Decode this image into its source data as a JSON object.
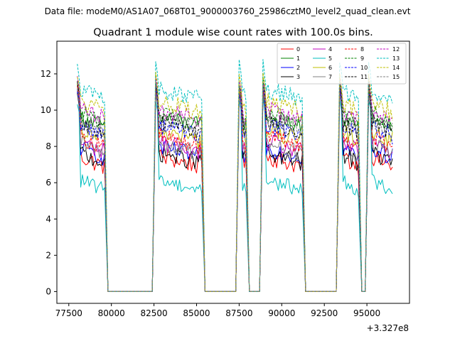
{
  "suptitle": "Data file: modeM0/AS1A07_068T01_9000003760_25986cztM0_level2_quad_clean.evt",
  "chart_data": {
    "type": "line",
    "title": "Quadrant 1 module wise count rates with 100.0s bins.",
    "xlabel": "",
    "ylabel": "",
    "x_offset_label": "+3.327e8",
    "xlim": [
      76800,
      97500
    ],
    "ylim": [
      -0.65,
      13.8
    ],
    "xticks": [
      77500,
      80000,
      82500,
      85000,
      87500,
      90000,
      92500,
      95000
    ],
    "yticks": [
      0,
      2,
      4,
      6,
      8,
      10,
      12
    ],
    "grid": false,
    "legend_position": "top-right",
    "legend_columns": 4,
    "segments": [
      {
        "start": 78000,
        "end": 79600
      },
      {
        "start": 82600,
        "end": 85300
      },
      {
        "start": 87500,
        "end": 87900
      },
      {
        "start": 88900,
        "end": 91200
      },
      {
        "start": 93400,
        "end": 94500
      },
      {
        "start": 95100,
        "end": 96500
      }
    ],
    "gap_points": [
      79800,
      80000,
      82400,
      85500,
      87300,
      88100,
      88300,
      88700,
      91400,
      93200,
      94700,
      94900
    ],
    "series": [
      {
        "name": "0",
        "color": "#ff0000",
        "dash": "solid",
        "level": 7.2,
        "amp": 0.5,
        "peak": 11.6
      },
      {
        "name": "1",
        "color": "#008000",
        "dash": "solid",
        "level": 9.4,
        "amp": 0.5,
        "peak": 11.8
      },
      {
        "name": "2",
        "color": "#0000ff",
        "dash": "solid",
        "level": 7.7,
        "amp": 0.5,
        "peak": 11.5
      },
      {
        "name": "3",
        "color": "#000000",
        "dash": "solid",
        "level": 7.4,
        "amp": 0.5,
        "peak": 11.4
      },
      {
        "name": "4",
        "color": "#bf00bf",
        "dash": "solid",
        "level": 8.0,
        "amp": 0.5,
        "peak": 11.6
      },
      {
        "name": "5",
        "color": "#00bfbf",
        "dash": "solid",
        "level": 5.9,
        "amp": 0.4,
        "peak": 11.0
      },
      {
        "name": "6",
        "color": "#bfbf00",
        "dash": "solid",
        "level": 8.6,
        "amp": 0.5,
        "peak": 11.7
      },
      {
        "name": "7",
        "color": "#808080",
        "dash": "solid",
        "level": 7.9,
        "amp": 0.5,
        "peak": 11.4
      },
      {
        "name": "8",
        "color": "#ff0000",
        "dash": "dashed",
        "level": 8.3,
        "amp": 0.5,
        "peak": 11.8
      },
      {
        "name": "9",
        "color": "#008000",
        "dash": "dashed",
        "level": 9.6,
        "amp": 0.5,
        "peak": 12.0
      },
      {
        "name": "10",
        "color": "#0000ff",
        "dash": "dashed",
        "level": 8.9,
        "amp": 0.5,
        "peak": 11.7
      },
      {
        "name": "11",
        "color": "#000000",
        "dash": "dashed",
        "level": 9.1,
        "amp": 0.5,
        "peak": 11.8
      },
      {
        "name": "12",
        "color": "#bf00bf",
        "dash": "dashed",
        "level": 9.8,
        "amp": 0.5,
        "peak": 12.2
      },
      {
        "name": "13",
        "color": "#00bfbf",
        "dash": "dashed",
        "level": 10.9,
        "amp": 0.5,
        "peak": 13.0
      },
      {
        "name": "14",
        "color": "#bfbf00",
        "dash": "dashed",
        "level": 10.2,
        "amp": 0.5,
        "peak": 12.4
      },
      {
        "name": "15",
        "color": "#808080",
        "dash": "dashed",
        "level": 9.3,
        "amp": 0.5,
        "peak": 11.9
      }
    ]
  }
}
